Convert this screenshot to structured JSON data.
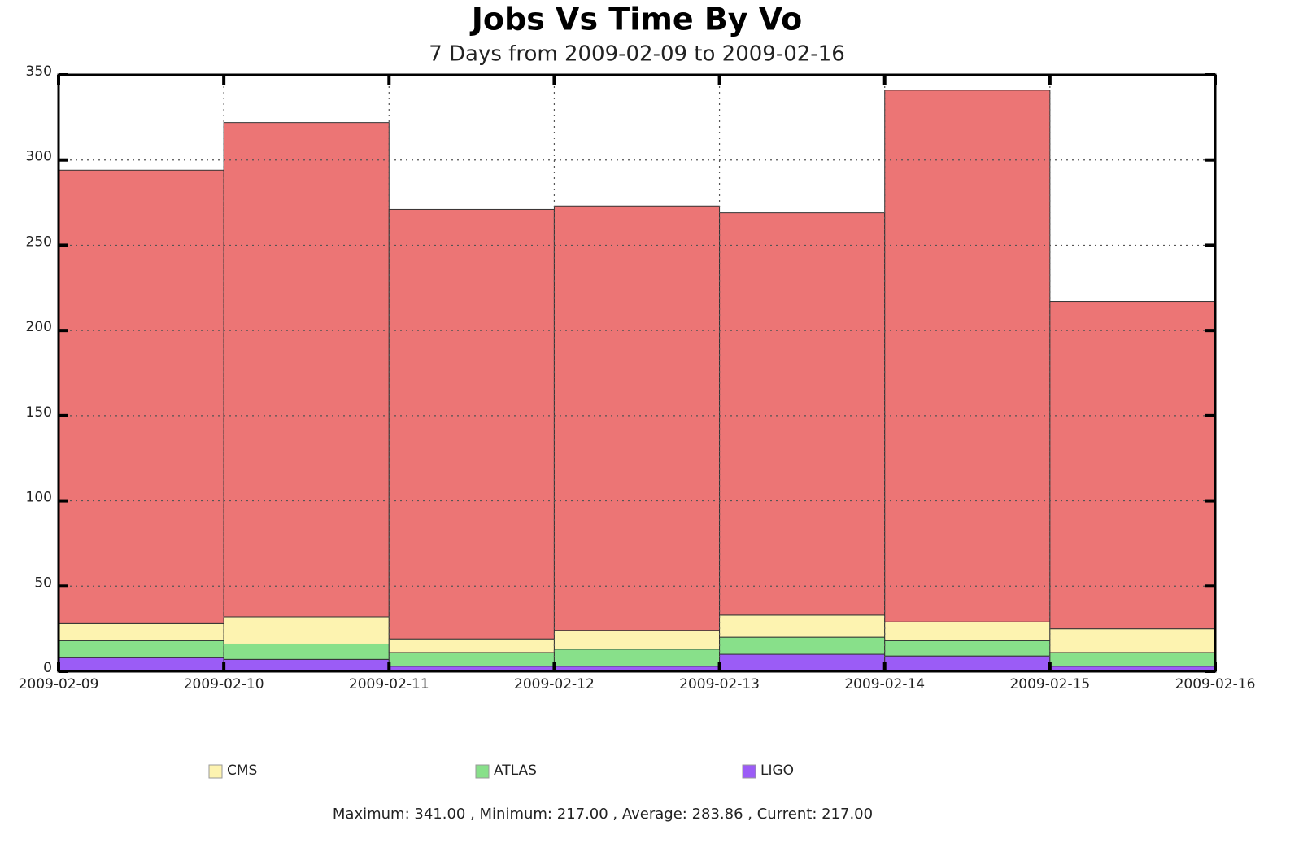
{
  "chart_data": {
    "type": "stacked_histogram",
    "title": "Jobs Vs Time By Vo",
    "subtitle": "7 Days from 2009-02-09 to 2009-02-16",
    "bins": [
      "2009-02-09",
      "2009-02-10",
      "2009-02-11",
      "2009-02-12",
      "2009-02-13",
      "2009-02-14",
      "2009-02-15",
      "2009-02-16"
    ],
    "series": [
      {
        "name": "LIGO",
        "color": "#9b5cf6",
        "values": [
          8,
          7,
          3,
          3,
          10,
          9,
          3
        ]
      },
      {
        "name": "ATLAS",
        "color": "#88e08a",
        "values": [
          10,
          9,
          8,
          10,
          10,
          9,
          8
        ]
      },
      {
        "name": "CMS",
        "color": "#fdf3b0",
        "values": [
          10,
          16,
          8,
          11,
          13,
          11,
          14
        ]
      },
      {
        "color": "#ec7575",
        "values": [
          266,
          290,
          252,
          249,
          236,
          312,
          192
        ]
      }
    ],
    "ylim": [
      0,
      350
    ],
    "yticks": [
      0,
      50,
      100,
      150,
      200,
      250,
      300,
      350
    ],
    "grid": true,
    "summary": "Maximum: 341.00 , Minimum: 217.00 , Average: 283.86 , Current: 217.00"
  }
}
